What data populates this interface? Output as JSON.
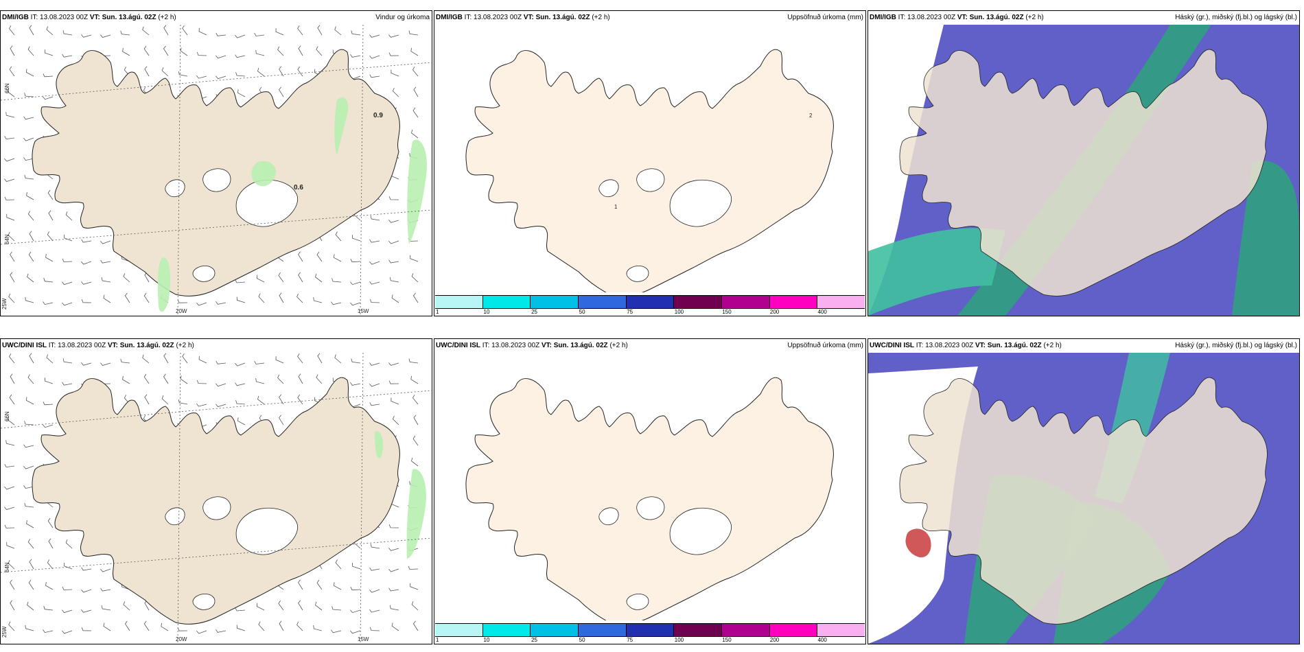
{
  "rows": [
    {
      "model": "DMI/IGB",
      "it": "IT: 13.08.2023 00Z",
      "vt_label": "VT:",
      "vt": "Sun. 13.ágú. 02Z",
      "lead": "(+2 h)",
      "left_map": {
        "title": "Vindur og úrkoma",
        "values": [
          "0.9",
          "0.6"
        ],
        "lat_labels": [
          "66N",
          "64N"
        ],
        "lon_labels": [
          "20W",
          "15W",
          "25W"
        ]
      },
      "mid_map": {
        "title": "Uppsöfnuð úrkoma (mm)",
        "values": [
          "2",
          "1"
        ]
      },
      "right_map": {
        "title": "Háský (gr.), miðský (fj.bl.) og lágský (bl.)"
      }
    },
    {
      "model": "UWC/DINI ISL",
      "it": "IT: 13.08.2023 00Z",
      "vt_label": "VT:",
      "vt": "Sun. 13.ágú. 02Z",
      "lead": "(+2 h)",
      "left_map": {
        "title": "",
        "values": [],
        "lat_labels": [
          "66N",
          "64N"
        ],
        "lon_labels": [
          "20W",
          "15W",
          "25W"
        ]
      },
      "mid_map": {
        "title": "Uppsöfnuð úrkoma (mm)",
        "values": []
      },
      "right_map": {
        "title": "Háský (gr.), miðský (fj.bl.) og lágský (bl.)"
      }
    }
  ],
  "colorbar": {
    "ticks": [
      "1",
      "10",
      "25",
      "50",
      "75",
      "100",
      "150",
      "200",
      "400"
    ],
    "colors": [
      "#b8f5f5",
      "#00e8e8",
      "#00c0e8",
      "#3068e0",
      "#2030b0",
      "#700050",
      "#b00090",
      "#ff00c0",
      "#f8b0f0"
    ]
  },
  "colors": {
    "land": "#efe3d1",
    "land_mid": "#fdf1e4",
    "precip": "#b8f0b0",
    "high_cloud": "#6060c8",
    "mid_cloud": "#30a080",
    "low_cloud": "#40c0a0"
  }
}
